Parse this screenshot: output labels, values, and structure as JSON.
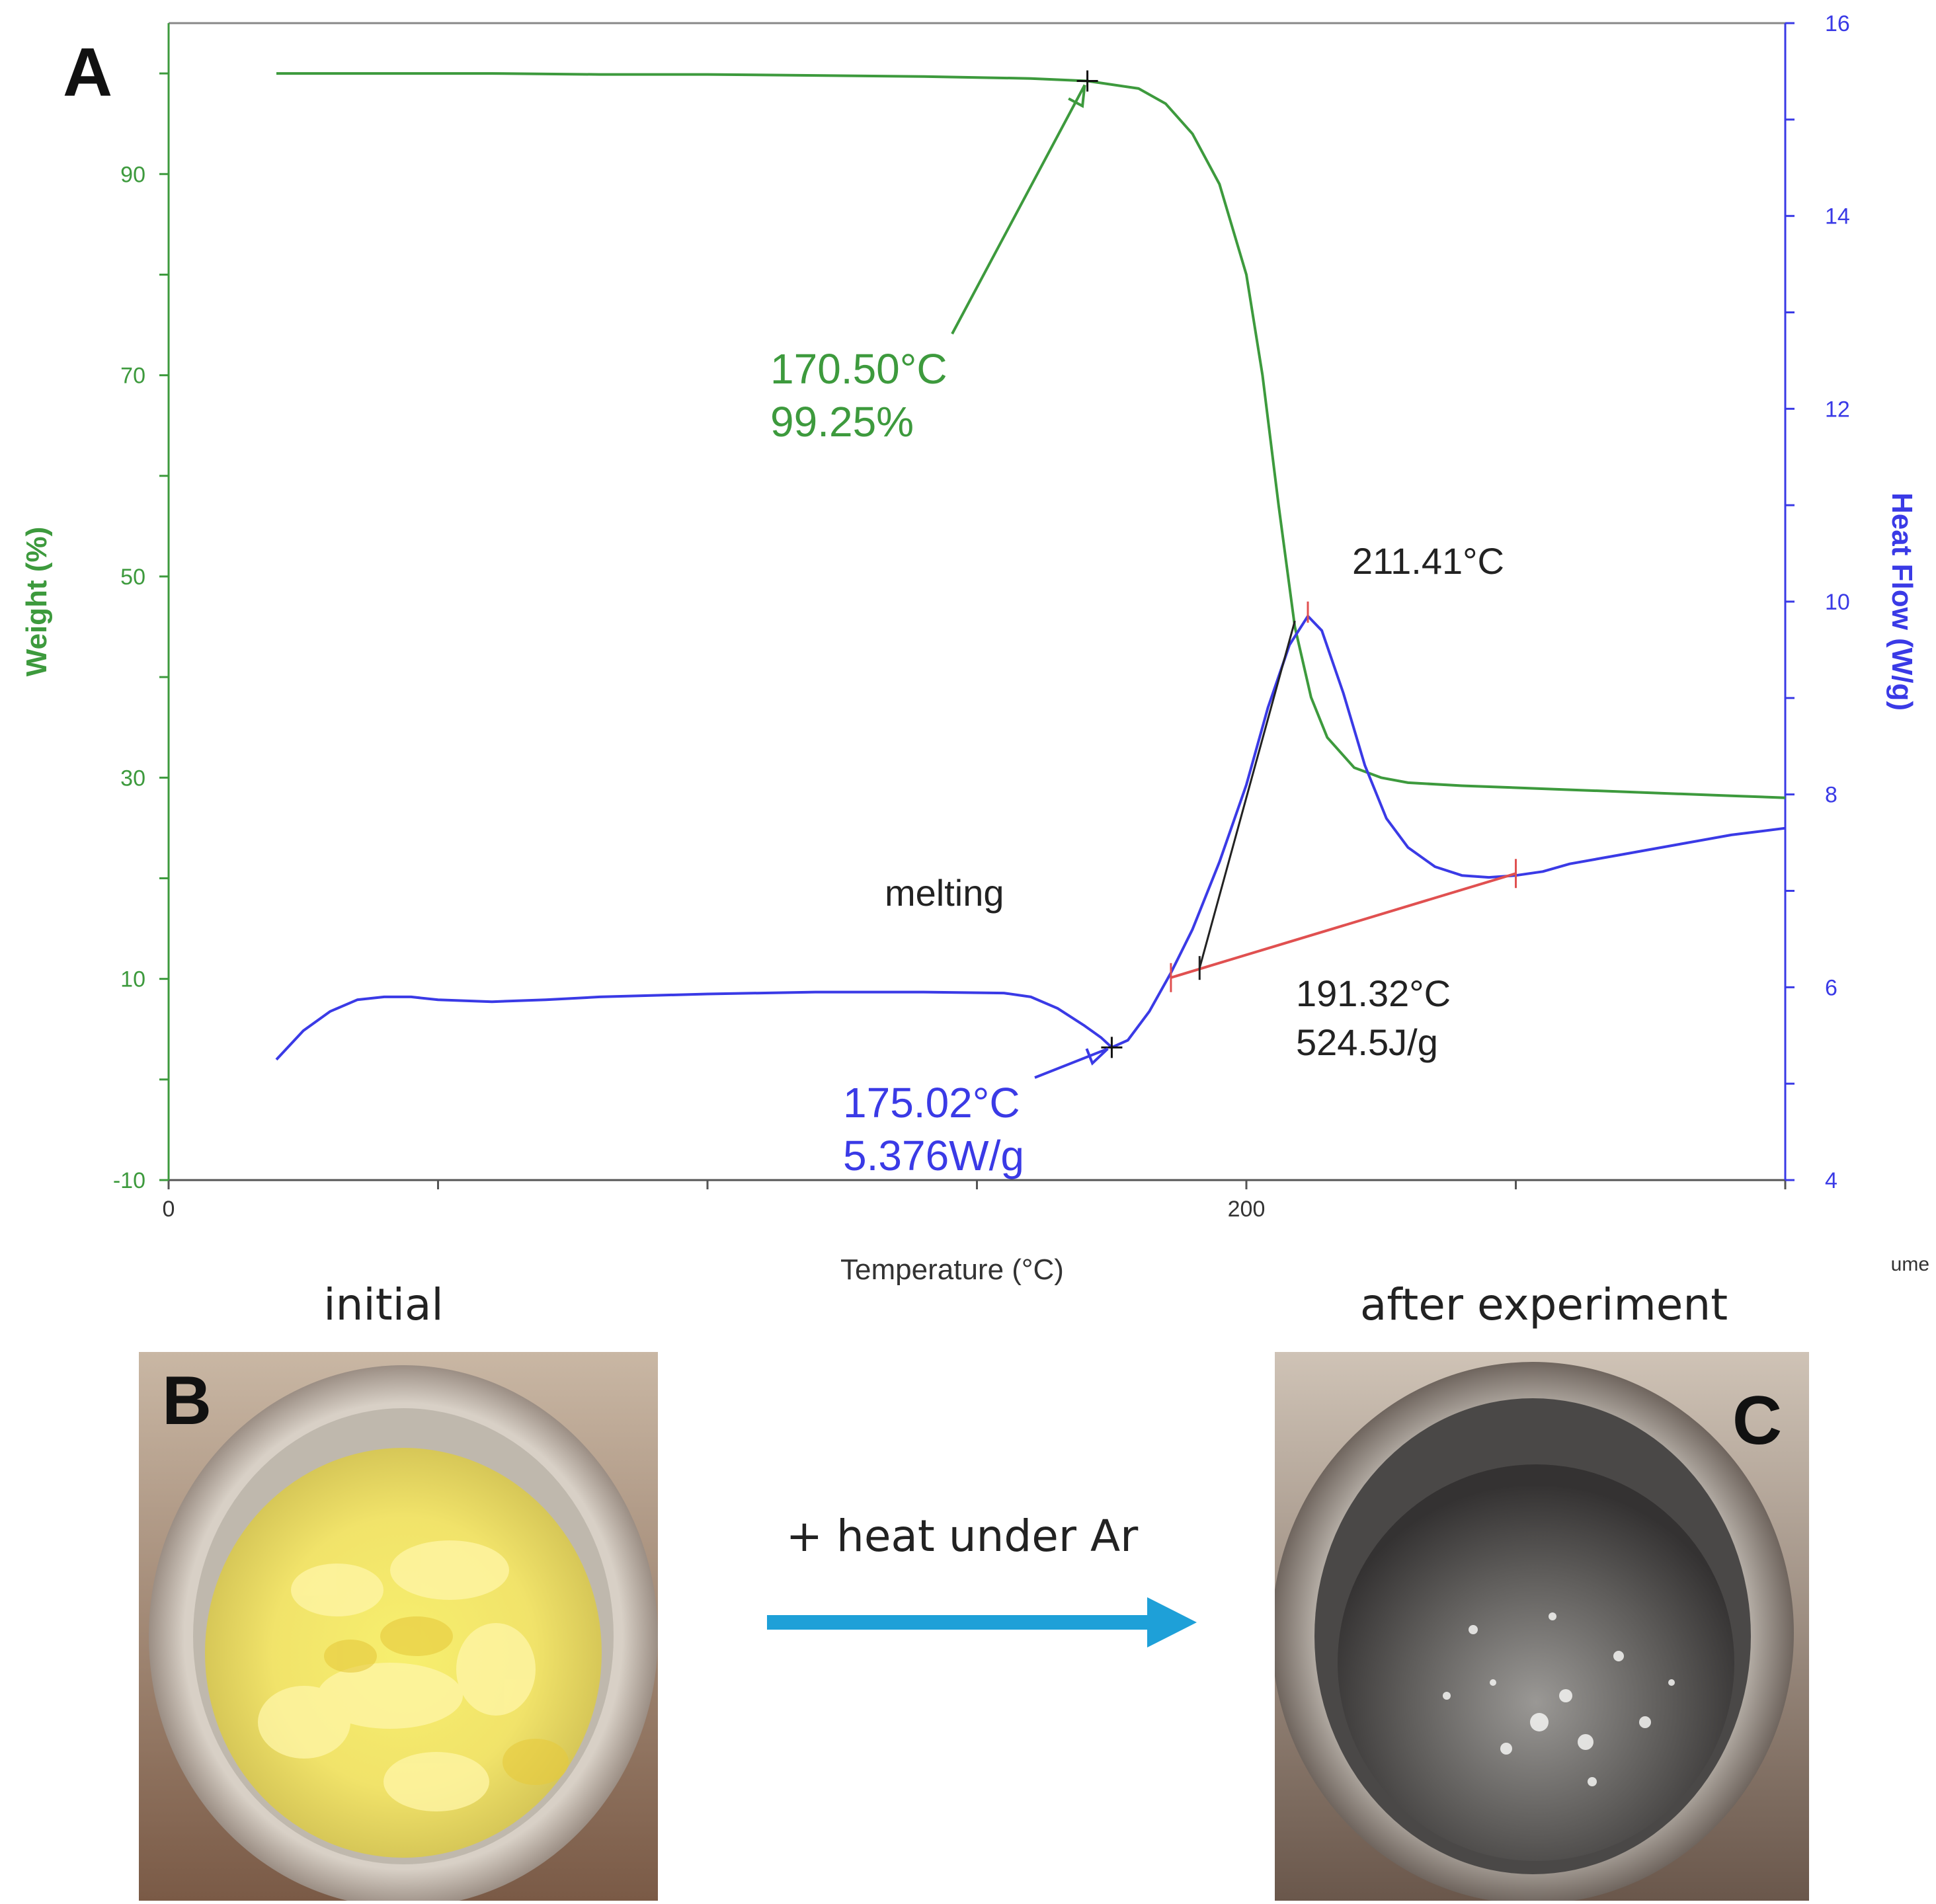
{
  "chart_data": {
    "type": "line",
    "panel_label": "A",
    "xlabel": "Temperature (°C)",
    "xlim": [
      0,
      300
    ],
    "xticks": [
      0,
      200
    ],
    "ylabel_left": "Weight (%)",
    "ylim_left": [
      -10,
      105
    ],
    "yticks_left": [
      -10,
      10,
      30,
      50,
      70,
      90
    ],
    "ylabel_right": "Heat Flow (W/g)",
    "ylim_right": [
      4,
      16
    ],
    "yticks_right": [
      4,
      6,
      8,
      10,
      12,
      14,
      16
    ],
    "right_edge_text": "ume",
    "series": [
      {
        "name": "Weight",
        "axis": "left",
        "color": "#3d9a3d",
        "x": [
          20,
          40,
          60,
          80,
          100,
          120,
          140,
          160,
          170.5,
          180,
          185,
          190,
          195,
          200,
          203,
          206,
          209,
          212,
          215,
          220,
          225,
          230,
          240,
          250,
          260,
          270,
          280,
          290,
          300
        ],
        "y": [
          100,
          100,
          100,
          99.9,
          99.9,
          99.8,
          99.7,
          99.5,
          99.25,
          98.5,
          97,
          94,
          89,
          80,
          70,
          57,
          45,
          38,
          34,
          31,
          30,
          29.5,
          29.2,
          29.0,
          28.8,
          28.6,
          28.4,
          28.2,
          28.0
        ]
      },
      {
        "name": "Heat Flow",
        "axis": "right",
        "color": "#3a3ae6",
        "x": [
          20,
          25,
          30,
          35,
          40,
          45,
          50,
          60,
          70,
          80,
          100,
          120,
          140,
          155,
          160,
          165,
          170,
          173,
          175.02,
          178,
          182,
          186,
          190,
          195,
          200,
          204,
          208,
          211.41,
          214,
          218,
          222,
          226,
          230,
          235,
          240,
          245,
          250,
          255,
          260,
          270,
          280,
          290,
          300
        ],
        "y": [
          5.25,
          5.55,
          5.75,
          5.87,
          5.9,
          5.9,
          5.87,
          5.85,
          5.87,
          5.9,
          5.93,
          5.95,
          5.95,
          5.94,
          5.9,
          5.78,
          5.6,
          5.48,
          5.376,
          5.45,
          5.75,
          6.15,
          6.6,
          7.3,
          8.1,
          8.9,
          9.55,
          9.85,
          9.7,
          9.05,
          8.3,
          7.75,
          7.45,
          7.25,
          7.16,
          7.14,
          7.16,
          7.2,
          7.28,
          7.38,
          7.48,
          7.58,
          7.65
        ]
      }
    ],
    "annotations": [
      {
        "text_lines": [
          "170.50°C",
          "99.25%"
        ],
        "color": "#3d9a3d",
        "x": 170.5,
        "y": 99.25,
        "axis": "left"
      },
      {
        "text_lines": [
          "175.02°C",
          "5.376W/g"
        ],
        "color": "#3a3ae6",
        "x": 175.02,
        "y": 5.376,
        "axis": "right"
      },
      {
        "text_lines": [
          "211.41°C"
        ],
        "color": "#222222",
        "x": 211.41,
        "y": 9.85,
        "axis": "right"
      },
      {
        "text_lines": [
          "191.32°C",
          "524.5J/g"
        ],
        "color": "#222222",
        "x": 191.32,
        "y": 6.15,
        "axis": "right"
      },
      {
        "text_lines": [
          "melting"
        ],
        "color": "#222222"
      }
    ],
    "baseline": {
      "color": "#e05050",
      "x": [
        186,
        250
      ],
      "y": [
        6.1,
        7.18
      ]
    },
    "onset_tangent": {
      "color": "#222222",
      "x": [
        191.32,
        209
      ],
      "y": [
        6.2,
        9.8
      ]
    }
  },
  "panels": {
    "b": {
      "letter": "B",
      "caption": "initial"
    },
    "arrow": {
      "label": "+ heat under Ar",
      "color": "#1ea0d8"
    },
    "c": {
      "letter": "C",
      "caption": "after experiment"
    }
  }
}
